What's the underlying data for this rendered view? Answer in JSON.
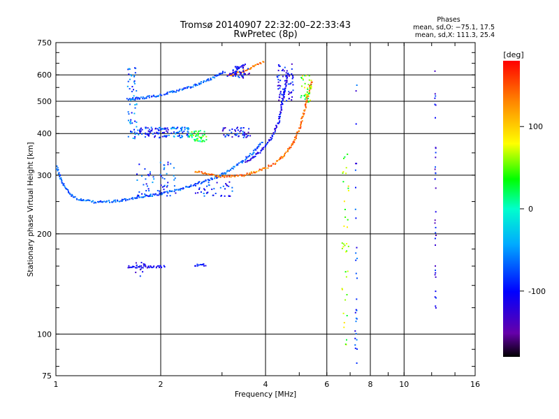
{
  "chart_data": {
    "type": "scatter",
    "title_line1": "Tromsø 20140907 22:32:00–22:33:43",
    "title_line2": "RwPretec (8p)",
    "info": {
      "header": "Phases",
      "line_o": "mean, sd,O: −75.1, 17.5",
      "line_x": "mean, sd,X: 111.3, 25.4"
    },
    "xlabel": "Frequency [MHz]",
    "ylabel": "Stationary phase Virtual Height [km]",
    "x_scale": "log",
    "y_scale": "log",
    "xlim": [
      1,
      16
    ],
    "ylim": [
      75,
      750
    ],
    "x_ticks": [
      1,
      2,
      4,
      6,
      8,
      10,
      16
    ],
    "y_ticks": [
      75,
      100,
      200,
      300,
      400,
      500,
      600,
      750
    ],
    "x_gridlines": [
      2,
      4,
      6,
      8,
      10
    ],
    "y_gridlines": [
      100,
      200,
      300,
      400,
      500,
      600
    ],
    "colorbar": {
      "label": "[deg]",
      "range": [
        -180,
        180
      ],
      "ticks": [
        100,
        0,
        -100
      ],
      "colormap": "rainbow"
    },
    "series": [
      {
        "label_color": "#00aaee",
        "kind": "curve",
        "points": [
          [
            1.0,
            320
          ],
          [
            1.03,
            290
          ],
          [
            1.08,
            268
          ],
          [
            1.15,
            255
          ],
          [
            1.3,
            250
          ],
          [
            1.5,
            252
          ],
          [
            1.7,
            258
          ],
          [
            2.0,
            265
          ],
          [
            2.3,
            275
          ],
          [
            2.6,
            287
          ],
          [
            2.9,
            298
          ],
          [
            3.1,
            310
          ],
          [
            3.4,
            330
          ],
          [
            3.7,
            355
          ],
          [
            3.9,
            380
          ]
        ],
        "phase": -70
      },
      {
        "label_color": "#0000ee",
        "kind": "curve",
        "points": [
          [
            3.5,
            330
          ],
          [
            3.8,
            350
          ],
          [
            4.0,
            370
          ],
          [
            4.2,
            400
          ],
          [
            4.35,
            440
          ],
          [
            4.45,
            500
          ],
          [
            4.55,
            560
          ],
          [
            4.6,
            620
          ]
        ],
        "phase": -105
      },
      {
        "label_color": "#ff6600",
        "kind": "curve",
        "points": [
          [
            2.5,
            310
          ],
          [
            3.0,
            298
          ],
          [
            3.4,
            300
          ],
          [
            3.8,
            310
          ],
          [
            4.2,
            325
          ],
          [
            4.5,
            345
          ],
          [
            4.8,
            380
          ],
          [
            5.0,
            420
          ],
          [
            5.15,
            470
          ],
          [
            5.3,
            530
          ],
          [
            5.4,
            580
          ]
        ],
        "phase": 140
      },
      {
        "label_color": "#00aaee",
        "kind": "curve",
        "points": [
          [
            1.6,
            510
          ],
          [
            1.8,
            515
          ],
          [
            2.0,
            525
          ],
          [
            2.3,
            545
          ],
          [
            2.6,
            570
          ],
          [
            2.9,
            600
          ],
          [
            3.05,
            620
          ]
        ],
        "phase": -70
      },
      {
        "label_color": "#ff6600",
        "kind": "curve",
        "points": [
          [
            3.1,
            600
          ],
          [
            3.4,
            615
          ],
          [
            3.7,
            640
          ],
          [
            3.95,
            660
          ]
        ],
        "phase": 140
      },
      {
        "label_color": "#0000ee",
        "kind": "curve",
        "points": [
          [
            3.1,
            600
          ],
          [
            3.3,
            625
          ],
          [
            3.5,
            650
          ]
        ],
        "phase": -110
      },
      {
        "label_color": "#3355ff",
        "kind": "curve",
        "points": [
          [
            1.6,
            160
          ],
          [
            1.75,
            160
          ],
          [
            1.9,
            160
          ],
          [
            2.05,
            160
          ]
        ],
        "phase": -115
      },
      {
        "label_color": "#00ccff",
        "kind": "curve",
        "points": [
          [
            2.5,
            162
          ],
          [
            2.7,
            162
          ]
        ],
        "phase": -90
      }
    ]
  }
}
